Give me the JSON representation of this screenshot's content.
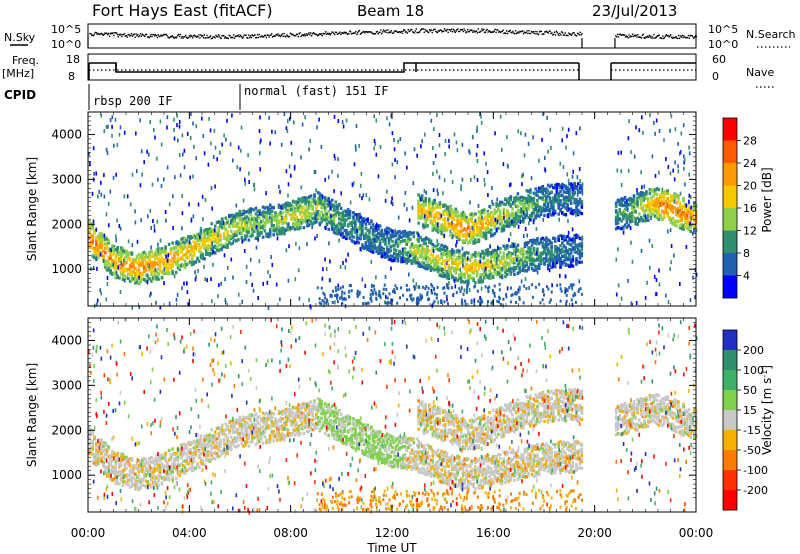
{
  "header": {
    "title": "Fort Hays East (fitACF)",
    "beam": "Beam 18",
    "date": "23/Jul/2013"
  },
  "top_panels": {
    "nsky_label": "N.Sky",
    "nsky_ticks": [
      "10^5",
      "10^0"
    ],
    "nsearch_label": "N.Search",
    "nsearch_ticks": [
      "10^5",
      "10^0"
    ],
    "freq_label": "Freq.",
    "freq_unit": "[MHz]",
    "freq_ticks": [
      "18",
      "8"
    ],
    "nave_label": "Nave",
    "nave_ticks": [
      "60",
      "0"
    ],
    "cpid_label": "CPID",
    "cpid_segments": [
      {
        "label": "rbsp 200 IF",
        "start_hour": 0
      },
      {
        "label": "normal (fast) 151 IF",
        "start_hour": 6
      }
    ]
  },
  "chart_data": [
    {
      "type": "heatmap",
      "name": "power",
      "ylabel": "Slant Range [km]",
      "xlabel": "Time UT",
      "xlim": [
        0,
        24
      ],
      "ylim": [
        180,
        4500
      ],
      "x_ticks": [
        "00:00",
        "04:00",
        "08:00",
        "12:00",
        "16:00",
        "20:00",
        "00:00"
      ],
      "y_ticks": [
        1000,
        2000,
        3000,
        4000
      ],
      "colorbar": {
        "label": "Power [dB]",
        "ticks": [
          28,
          24,
          20,
          16,
          12,
          8,
          4
        ],
        "colors": [
          "#ff0000",
          "#ff5a00",
          "#ff9b00",
          "#f5c800",
          "#8fd04a",
          "#2f8f70",
          "#2060b0",
          "#0000ff"
        ]
      },
      "data_gap": [
        19.5,
        20.8
      ],
      "echo_bands": [
        {
          "x": [
            0,
            1,
            2,
            3,
            4,
            5,
            6,
            7,
            8,
            9,
            10,
            11,
            12,
            13
          ],
          "y": [
            1750,
            1200,
            1050,
            1200,
            1450,
            1750,
            2000,
            2100,
            2200,
            2400,
            2100,
            1800,
            1550,
            1500
          ],
          "power_db": [
            26,
            22,
            24,
            22,
            20,
            18,
            16,
            14,
            18,
            16,
            12,
            10,
            10,
            18
          ]
        },
        {
          "x": [
            13,
            14,
            15,
            16,
            17,
            18,
            19,
            19.5
          ],
          "y": [
            2350,
            2150,
            1900,
            2150,
            2400,
            2550,
            2600,
            2600
          ],
          "power_db": [
            20,
            22,
            24,
            18,
            14,
            10,
            8,
            8
          ]
        },
        {
          "x": [
            13,
            14,
            15,
            16,
            17,
            18,
            19,
            19.5
          ],
          "y": [
            1450,
            1200,
            1050,
            1150,
            1300,
            1400,
            1450,
            1450
          ],
          "power_db": [
            16,
            18,
            20,
            18,
            14,
            10,
            8,
            8
          ]
        },
        {
          "x": [
            20.8,
            21.5,
            22,
            22.5,
            23,
            23.5,
            24
          ],
          "y": [
            2250,
            2350,
            2450,
            2500,
            2400,
            2250,
            2150
          ],
          "power_db": [
            10,
            14,
            18,
            24,
            26,
            24,
            22
          ]
        }
      ]
    },
    {
      "type": "heatmap",
      "name": "velocity",
      "ylabel": "Slant Range [km]",
      "xlabel": "Time UT",
      "xlim": [
        0,
        24
      ],
      "ylim": [
        180,
        4500
      ],
      "x_ticks": [
        "00:00",
        "04:00",
        "08:00",
        "12:00",
        "16:00",
        "20:00",
        "00:00"
      ],
      "y_ticks": [
        1000,
        2000,
        3000,
        4000
      ],
      "colorbar": {
        "label": "Velocity [m s^-1]",
        "ticks": [
          200,
          100,
          50,
          15,
          -15,
          -50,
          -100,
          -200
        ],
        "colors": [
          "#2030c0",
          "#2f8f70",
          "#3fb06a",
          "#7fd04a",
          "#c8c8c8",
          "#f5b000",
          "#ff7a00",
          "#ff3000",
          "#ff0000"
        ]
      }
    }
  ]
}
